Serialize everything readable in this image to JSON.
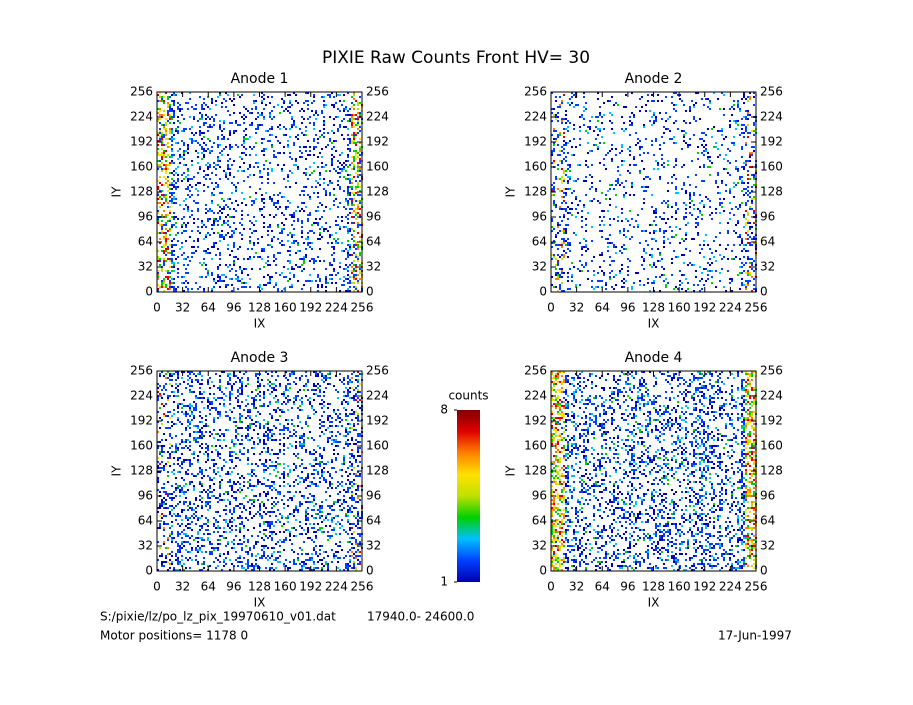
{
  "title": "PIXIE Raw Counts Front HV= 30",
  "chart_data": [
    {
      "type": "heatmap",
      "title": "Anode 1",
      "xlabel": "IX",
      "ylabel": "IY",
      "xlim": [
        0,
        256
      ],
      "ylim": [
        0,
        256
      ],
      "xticks": [
        0,
        32,
        64,
        96,
        128,
        160,
        192,
        224,
        256
      ],
      "yticks": [
        0,
        32,
        64,
        96,
        128,
        160,
        192,
        224,
        256
      ]
    },
    {
      "type": "heatmap",
      "title": "Anode 2",
      "xlabel": "IX",
      "ylabel": "IY",
      "xlim": [
        0,
        256
      ],
      "ylim": [
        0,
        256
      ],
      "xticks": [
        0,
        32,
        64,
        96,
        128,
        160,
        192,
        224,
        256
      ],
      "yticks": [
        0,
        32,
        64,
        96,
        128,
        160,
        192,
        224,
        256
      ]
    },
    {
      "type": "heatmap",
      "title": "Anode 3",
      "xlabel": "IX",
      "ylabel": "IY",
      "xlim": [
        0,
        256
      ],
      "ylim": [
        0,
        256
      ],
      "xticks": [
        0,
        32,
        64,
        96,
        128,
        160,
        192,
        224,
        256
      ],
      "yticks": [
        0,
        32,
        64,
        96,
        128,
        160,
        192,
        224,
        256
      ]
    },
    {
      "type": "heatmap",
      "title": "Anode 4",
      "xlabel": "IX",
      "ylabel": "IY",
      "xlim": [
        0,
        256
      ],
      "ylim": [
        0,
        256
      ],
      "xticks": [
        0,
        32,
        64,
        96,
        128,
        160,
        192,
        224,
        256
      ],
      "yticks": [
        0,
        32,
        64,
        96,
        128,
        160,
        192,
        224,
        256
      ]
    }
  ],
  "colorbar": {
    "label": "counts",
    "lim": [
      1,
      8
    ],
    "ticks": [
      1,
      8
    ],
    "colors": [
      "#0000b0",
      "#0040ff",
      "#00c0ff",
      "#00d000",
      "#c0e000",
      "#ffe000",
      "#ff8000",
      "#e00000",
      "#800000"
    ]
  },
  "footer": {
    "file": "S:/pixie/lz/po_lz_pix_19970610_v01.dat",
    "range": "17940.0- 24600.0",
    "motor": "Motor positions= 1178 0",
    "date": "17-Jun-1997"
  }
}
